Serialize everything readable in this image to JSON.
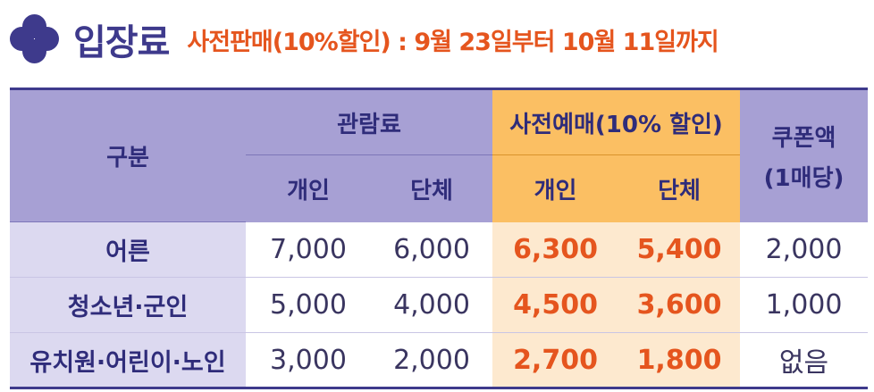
{
  "header": {
    "title": "입장료",
    "subtitle": "사전판매(10%할인) : 9월 23일부터 10월 11일까지"
  },
  "table": {
    "headers": {
      "category": "구분",
      "admission": "관람료",
      "presale": "사전예매(10% 할인)",
      "coupon_line1": "쿠폰액",
      "coupon_line2": "(1매당)",
      "individual": "개인",
      "group": "단체",
      "presale_individual": "개인",
      "presale_group": "단체"
    },
    "rows": [
      {
        "category": "어른",
        "individual": "7,000",
        "group": "6,000",
        "presale_individual": "6,300",
        "presale_group": "5,400",
        "coupon": "2,000"
      },
      {
        "category": "청소년·군인",
        "individual": "5,000",
        "group": "4,000",
        "presale_individual": "4,500",
        "presale_group": "3,600",
        "coupon": "1,000"
      },
      {
        "category": "유치원·어린이·노인",
        "individual": "3,000",
        "group": "2,000",
        "presale_individual": "2,700",
        "presale_group": "1,800",
        "coupon": "없음"
      }
    ]
  },
  "colors": {
    "navy": "#3e3a8c",
    "orange": "#e5551e",
    "header_purple": "#a7a0d4",
    "header_orange": "#fbbf63",
    "presale_cell": "#fde9cf",
    "category_cell": "#dcd9f0"
  },
  "icons": {
    "title_icon": "four-circle-clover-icon"
  }
}
